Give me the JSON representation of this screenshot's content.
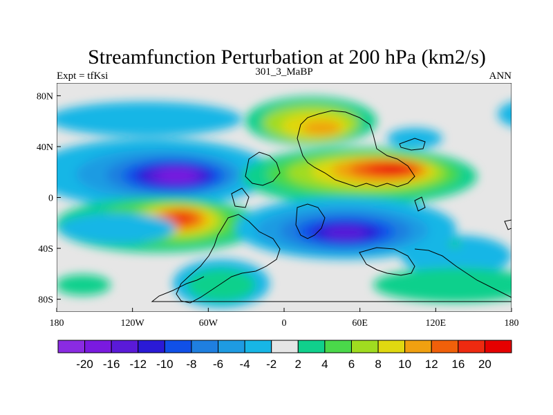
{
  "chart_data": {
    "type": "contour-map",
    "title": "Streamfunction Perturbation at 200 hPa (km2/s)",
    "left_label": "Expt = tfKsi",
    "center_label": "301_3_MaBP",
    "right_label": "ANN",
    "xaxis": {
      "range": [
        -180,
        180
      ],
      "ticks": [
        {
          "value": -180,
          "label": "180"
        },
        {
          "value": -120,
          "label": "120W"
        },
        {
          "value": -60,
          "label": "60W"
        },
        {
          "value": 0,
          "label": "0"
        },
        {
          "value": 60,
          "label": "60E"
        },
        {
          "value": 120,
          "label": "120E"
        },
        {
          "value": 180,
          "label": "180"
        }
      ]
    },
    "yaxis": {
      "range": [
        -90,
        90
      ],
      "ticks": [
        {
          "value": 80,
          "label": "80N"
        },
        {
          "value": 40,
          "label": "40N"
        },
        {
          "value": 0,
          "label": "0"
        },
        {
          "value": -40,
          "label": "40S"
        },
        {
          "value": -80,
          "label": "80S"
        }
      ]
    },
    "colorbar": {
      "levels": [
        "-20",
        "-16",
        "-12",
        "-10",
        "-8",
        "-6",
        "-4",
        "-2",
        "2",
        "4",
        "6",
        "8",
        "10",
        "12",
        "16",
        "20"
      ],
      "level_values": [
        -20,
        -16,
        -12,
        -10,
        -8,
        -6,
        -4,
        -2,
        2,
        4,
        6,
        8,
        10,
        12,
        16,
        20
      ],
      "colors": [
        "#8a2be2",
        "#7a1ae0",
        "#5a1ad8",
        "#2a1ad6",
        "#1050e8",
        "#1f7fe0",
        "#1e9be2",
        "#17b6e6",
        "#e6e6e6",
        "#10d08c",
        "#4ad84a",
        "#a0dc20",
        "#e0d810",
        "#f0a010",
        "#f0600a",
        "#ee2a10",
        "#e60000"
      ]
    },
    "background_color": "#e6e6e6",
    "features": [
      {
        "name": "negative-center-north-pacific",
        "lon": -105,
        "lat": 18,
        "value": -20
      },
      {
        "name": "positive-center-south-pacific",
        "lon": -85,
        "lat": -17,
        "value": 20
      },
      {
        "name": "positive-center-asia",
        "lon": 80,
        "lat": 22,
        "value": 20
      },
      {
        "name": "negative-center-indian-ocean",
        "lon": 45,
        "lat": -28,
        "value": -16
      },
      {
        "name": "positive-center-siberia",
        "lon": 35,
        "lat": 57,
        "value": 12
      },
      {
        "name": "positive-center-southern-ocean",
        "lon": -45,
        "lat": -68,
        "value": 4
      }
    ]
  }
}
